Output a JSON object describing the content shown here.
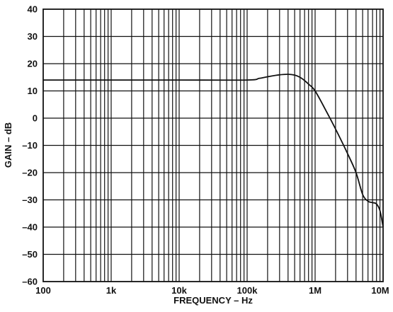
{
  "chart_data": {
    "type": "line",
    "title": "",
    "xlabel": "FREQUENCY – Hz",
    "ylabel": "GAIN – dB",
    "x_scale": "log",
    "xlim": [
      100,
      10000000
    ],
    "ylim": [
      -60,
      40
    ],
    "grid": true,
    "legend": "none",
    "x_ticks": [
      {
        "value": 100,
        "label": "100"
      },
      {
        "value": 1000,
        "label": "1k"
      },
      {
        "value": 10000,
        "label": "10k"
      },
      {
        "value": 100000,
        "label": "100k"
      },
      {
        "value": 1000000,
        "label": "1M"
      },
      {
        "value": 10000000,
        "label": "10M"
      }
    ],
    "y_ticks": [
      {
        "value": 40,
        "label": "40"
      },
      {
        "value": 30,
        "label": "30"
      },
      {
        "value": 20,
        "label": "20"
      },
      {
        "value": 10,
        "label": "10"
      },
      {
        "value": 0,
        "label": "0"
      },
      {
        "value": -10,
        "label": "–10"
      },
      {
        "value": -20,
        "label": "–20"
      },
      {
        "value": -30,
        "label": "–30"
      },
      {
        "value": -40,
        "label": "–40"
      },
      {
        "value": -50,
        "label": "–50"
      },
      {
        "value": -60,
        "label": "–60"
      }
    ],
    "series": [
      {
        "x": [
          100,
          1000,
          10000,
          100000,
          150000,
          200000,
          300000,
          400000,
          500000,
          600000,
          700000,
          800000,
          1000000,
          1500000,
          2000000,
          3000000,
          4000000,
          5000000,
          6000000,
          7000000,
          8000000,
          9000000,
          10000000
        ],
        "y": [
          14,
          14,
          14,
          14,
          14.6,
          15.2,
          15.9,
          16.1,
          15.8,
          15.0,
          13.8,
          12.5,
          10,
          2,
          -4,
          -13,
          -20,
          -28,
          -30.5,
          -31,
          -31.5,
          -34,
          -40
        ]
      }
    ],
    "colors": {
      "line": "#111111",
      "grid": "#111111",
      "background": "#ffffff"
    }
  }
}
